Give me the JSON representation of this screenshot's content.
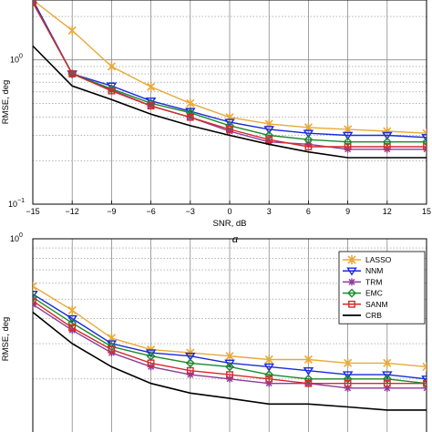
{
  "chart_data": [
    {
      "type": "line",
      "panel_label": "a",
      "xlabel": "SNR, dB",
      "ylabel": "RMSE, deg",
      "x": [
        -15,
        -12,
        -9,
        -6,
        -3,
        0,
        3,
        6,
        9,
        12,
        15
      ],
      "xticks": [
        "−15",
        "−12",
        "−9",
        "−6",
        "−3",
        "0",
        "3",
        "6",
        "9",
        "12",
        "15"
      ],
      "xlim": [
        -15,
        15
      ],
      "ylim": [
        0.1,
        2.6
      ],
      "yscale": "log",
      "yticks": [
        {
          "value": 1,
          "base": "10",
          "exp": "0"
        },
        {
          "value": 0.1,
          "base": "10",
          "exp": "−1"
        }
      ],
      "grid": true,
      "series": [
        {
          "name": "LASSO",
          "color": "#e8a93a",
          "marker": "x",
          "values": [
            2.6,
            1.6,
            0.9,
            0.65,
            0.5,
            0.4,
            0.36,
            0.34,
            0.33,
            0.32,
            0.31
          ]
        },
        {
          "name": "NNM",
          "color": "#1a2adb",
          "marker": "triangle-down",
          "values": [
            2.6,
            0.8,
            0.66,
            0.52,
            0.44,
            0.37,
            0.33,
            0.31,
            0.3,
            0.3,
            0.29
          ]
        },
        {
          "name": "TRM",
          "color": "#8e3a9a",
          "marker": "star",
          "values": [
            2.5,
            0.8,
            0.62,
            0.48,
            0.4,
            0.32,
            0.27,
            0.26,
            0.24,
            0.24,
            0.24
          ]
        },
        {
          "name": "EMC",
          "color": "#1a8a2a",
          "marker": "diamond",
          "values": [
            2.5,
            0.8,
            0.63,
            0.5,
            0.43,
            0.35,
            0.3,
            0.28,
            0.27,
            0.27,
            0.27
          ]
        },
        {
          "name": "SANM",
          "color": "#d42a2a",
          "marker": "square",
          "values": [
            2.5,
            0.8,
            0.61,
            0.48,
            0.4,
            0.33,
            0.28,
            0.25,
            0.25,
            0.25,
            0.25
          ]
        },
        {
          "name": "CRB",
          "color": "#000000",
          "marker": "none",
          "values": [
            1.25,
            0.66,
            0.53,
            0.42,
            0.35,
            0.3,
            0.26,
            0.23,
            0.21,
            0.21,
            0.21
          ]
        }
      ]
    },
    {
      "type": "line",
      "xlabel": "",
      "ylabel": "RMSE, deg",
      "x": [
        -15,
        -12,
        -9,
        -6,
        -3,
        0,
        3,
        6,
        9,
        12,
        15
      ],
      "xlim": [
        -15,
        15
      ],
      "ylim": [
        0.1,
        1
      ],
      "yscale": "log",
      "yticks": [
        {
          "value": 1,
          "base": "10",
          "exp": "0"
        }
      ],
      "grid": true,
      "legend": "top-right",
      "series": [
        {
          "name": "LASSO",
          "color": "#e8a93a",
          "marker": "x",
          "values": [
            0.58,
            0.44,
            0.32,
            0.28,
            0.27,
            0.26,
            0.25,
            0.25,
            0.24,
            0.24,
            0.23
          ]
        },
        {
          "name": "NNM",
          "color": "#1a2adb",
          "marker": "triangle-down",
          "values": [
            0.53,
            0.4,
            0.3,
            0.27,
            0.26,
            0.24,
            0.23,
            0.22,
            0.21,
            0.21,
            0.2
          ]
        },
        {
          "name": "TRM",
          "color": "#8e3a9a",
          "marker": "star",
          "values": [
            0.47,
            0.35,
            0.27,
            0.23,
            0.21,
            0.2,
            0.19,
            0.19,
            0.18,
            0.18,
            0.18
          ]
        },
        {
          "name": "EMC",
          "color": "#1a8a2a",
          "marker": "diamond",
          "values": [
            0.51,
            0.38,
            0.29,
            0.26,
            0.24,
            0.23,
            0.21,
            0.2,
            0.2,
            0.2,
            0.19
          ]
        },
        {
          "name": "SANM",
          "color": "#d42a2a",
          "marker": "square",
          "values": [
            0.49,
            0.36,
            0.28,
            0.24,
            0.22,
            0.21,
            0.2,
            0.19,
            0.19,
            0.19,
            0.19
          ]
        },
        {
          "name": "CRB",
          "color": "#000000",
          "marker": "none",
          "values": [
            0.43,
            0.3,
            0.23,
            0.19,
            0.17,
            0.16,
            0.15,
            0.15,
            0.145,
            0.14,
            0.14
          ]
        }
      ]
    }
  ]
}
